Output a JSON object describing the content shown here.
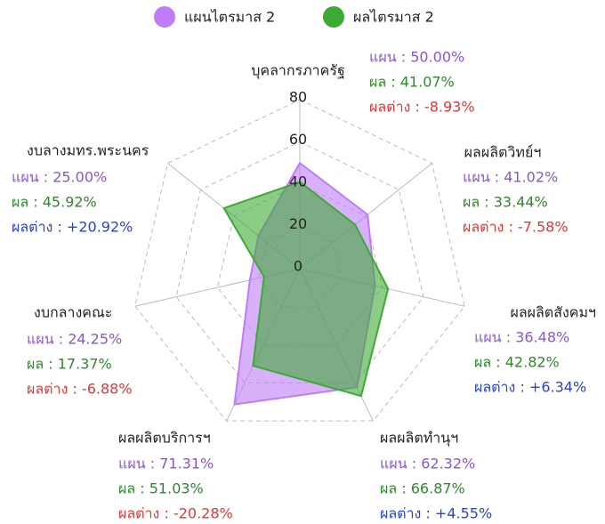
{
  "chart_data": {
    "type": "radar",
    "categories": [
      "บุคลากรภาครัฐ",
      "ผลผลิตวิทย์ฯ",
      "ผลผลิตสังคมฯ",
      "ผลผลิตทำนุฯ",
      "ผลผลิตบริการฯ",
      "งบกลางคณะ",
      "งบลางมทร.พระนคร"
    ],
    "series": [
      {
        "name": "แผนไตรมาส 2",
        "color": "#c07cf7",
        "label_color": "#8b55d6",
        "values": [
          50.0,
          41.02,
          36.48,
          62.32,
          71.31,
          24.25,
          25.0
        ],
        "value_labels": [
          "แผน : 50.00%",
          "แผน : 41.02%",
          "แผน : 36.48%",
          "แผน : 62.32%",
          "แผน : 71.31%",
          "แผน : 24.25%",
          "แผน : 25.00%"
        ]
      },
      {
        "name": "ผลไตรมาส 2",
        "color": "#3daa35",
        "label_color": "#2e8a2a",
        "values": [
          41.07,
          33.44,
          42.82,
          66.87,
          51.03,
          17.37,
          45.92
        ],
        "value_labels": [
          "ผล : 41.07%",
          "ผล : 33.44%",
          "ผล : 42.82%",
          "ผล : 66.87%",
          "ผล : 51.03%",
          "ผล : 17.37%",
          "ผล : 45.92%"
        ]
      }
    ],
    "differences": {
      "values": [
        -8.93,
        -7.58,
        6.34,
        4.55,
        -20.28,
        -6.88,
        20.92
      ],
      "value_labels": [
        "ผลต่าง : -8.93%",
        "ผลต่าง : -7.58%",
        "ผลต่าง : +6.34%",
        "ผลต่าง : +4.55%",
        "ผลต่าง : -20.28%",
        "ผลต่าง : -6.88%",
        "ผลต่าง : +20.92%"
      ],
      "positive_color": "#2442e0",
      "negative_color": "#ea3434"
    },
    "rlim": [
      0,
      80
    ],
    "rticks": [
      0,
      20,
      40,
      60,
      80
    ],
    "grid": true
  }
}
